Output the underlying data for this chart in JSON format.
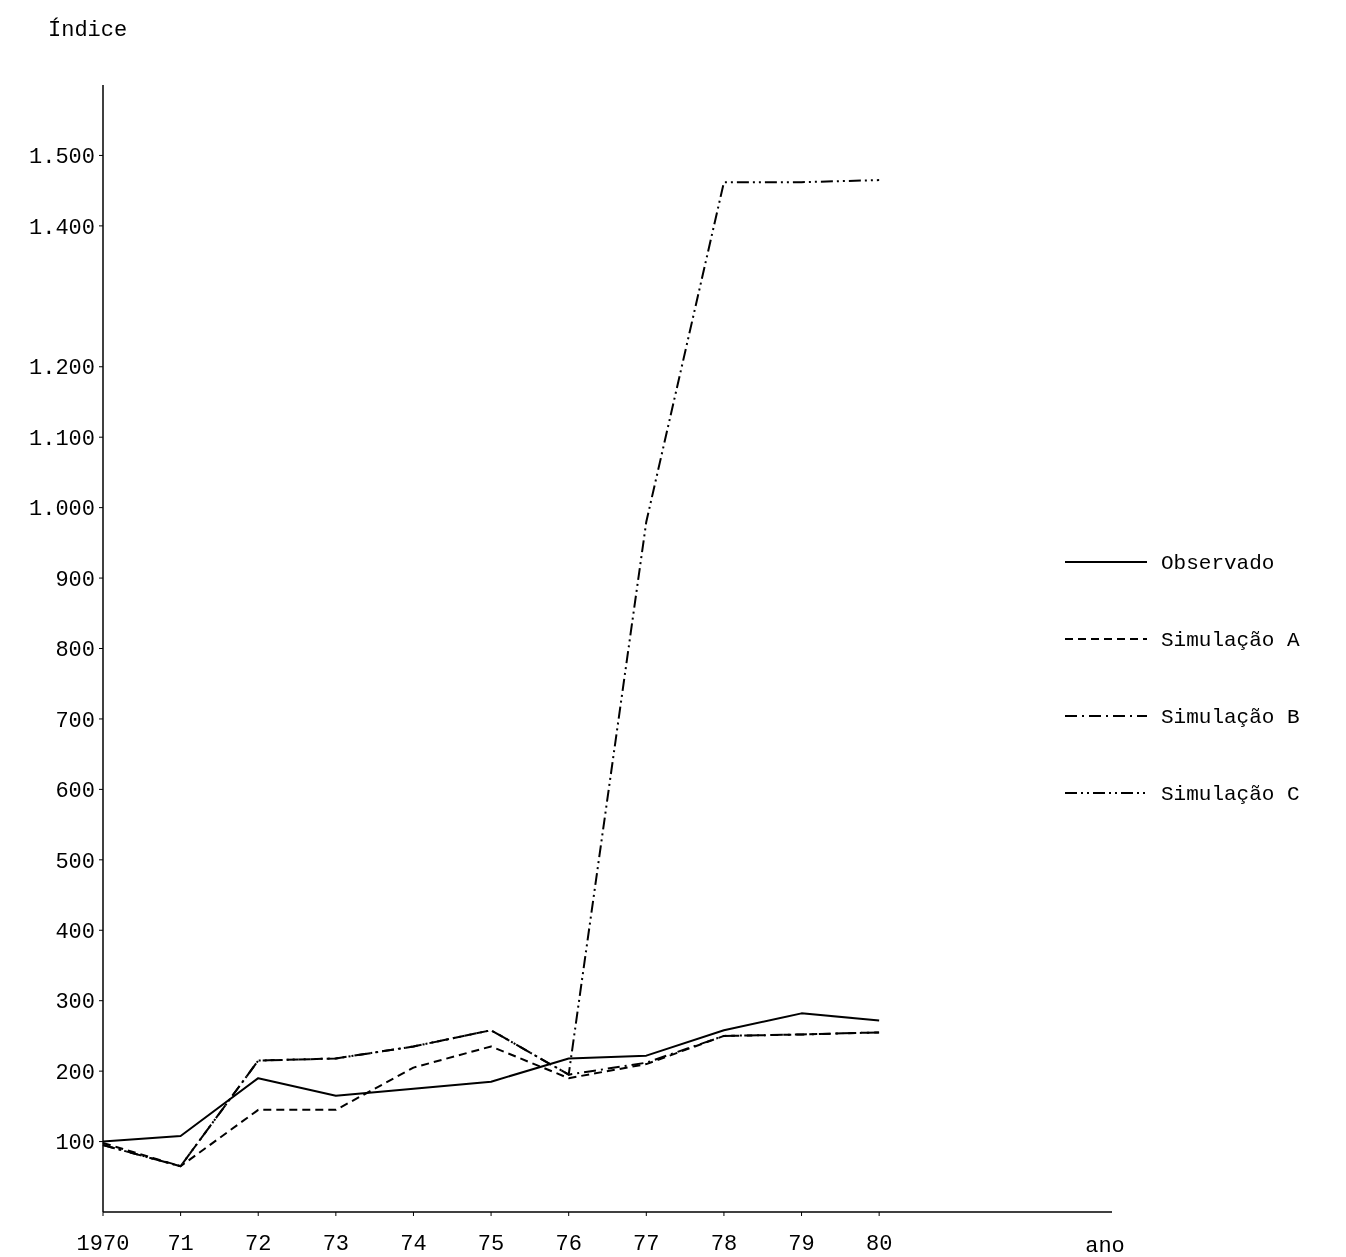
{
  "chart_data": {
    "type": "line",
    "ylabel": "Índice",
    "xlabel": "ano",
    "x": [
      1970,
      1971,
      1972,
      1973,
      1974,
      1975,
      1976,
      1977,
      1978,
      1979,
      1980
    ],
    "xlim": [
      1970,
      1983
    ],
    "xticks": [
      1970,
      {
        "value": 1971,
        "label": "71"
      },
      {
        "value": 1972,
        "label": "72"
      },
      {
        "value": 1973,
        "label": "73"
      },
      {
        "value": 1974,
        "label": "74"
      },
      {
        "value": 1975,
        "label": "75"
      },
      {
        "value": 1976,
        "label": "76"
      },
      {
        "value": 1977,
        "label": "77"
      },
      {
        "value": 1978,
        "label": "78"
      },
      {
        "value": 1979,
        "label": "79"
      },
      {
        "value": 1980,
        "label": "80"
      }
    ],
    "ylim": [
      0,
      1600
    ],
    "yticks": [
      100,
      200,
      300,
      400,
      500,
      600,
      700,
      800,
      900,
      {
        "value": 1000,
        "label": "1.000"
      },
      {
        "value": 1100,
        "label": "1.100"
      },
      {
        "value": 1200,
        "label": "1.200"
      },
      {
        "value": 1400,
        "label": "1.400"
      },
      {
        "value": 1500,
        "label": "1.500"
      }
    ],
    "grid": false,
    "legend": "right",
    "marker": "none",
    "series": [
      {
        "name": "Observado",
        "color": "#000000",
        "line_style": "solid",
        "values": [
          100,
          108,
          190,
          165,
          175,
          185,
          218,
          222,
          258,
          282,
          272
        ]
      },
      {
        "name": "Simulação A",
        "color": "#000000",
        "line_style": "dashed",
        "values": [
          98,
          65,
          145,
          145,
          205,
          235,
          190,
          210,
          250,
          252,
          255
        ]
      },
      {
        "name": "Simulação B",
        "color": "#000000",
        "line_style": "dashdot",
        "values": [
          95,
          65,
          215,
          218,
          235,
          258,
          195,
          212,
          250,
          252,
          255
        ]
      },
      {
        "name": "Simulação C",
        "color": "#000000",
        "line_style": "dashdotdot",
        "values": [
          95,
          65,
          215,
          218,
          235,
          258,
          195,
          980,
          1462,
          1462,
          1465
        ]
      }
    ]
  }
}
